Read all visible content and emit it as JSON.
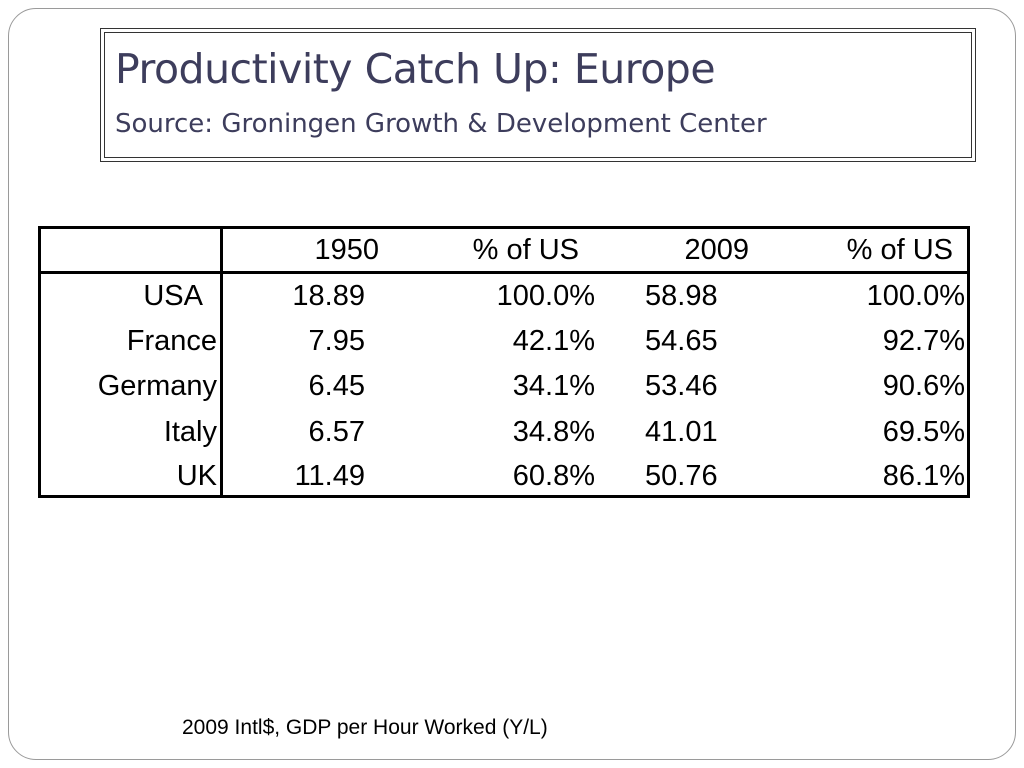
{
  "slide": {
    "title": "Productivity Catch Up: Europe",
    "subtitle": "Source: Groningen Growth & Development Center",
    "footnote": "2009 Intl$, GDP per Hour Worked (Y/L)"
  },
  "table": {
    "columns": [
      "1950",
      "% of US",
      "2009",
      "% of US"
    ],
    "rows": [
      {
        "country": "USA",
        "v1950": "18.89",
        "pct1950": "100.0%",
        "v2009": "58.98",
        "pct2009": "100.0%"
      },
      {
        "country": "France",
        "v1950": "7.95",
        "pct1950": "42.1%",
        "v2009": "54.65",
        "pct2009": "92.7%"
      },
      {
        "country": "Germany",
        "v1950": "6.45",
        "pct1950": "34.1%",
        "v2009": "53.46",
        "pct2009": "90.6%"
      },
      {
        "country": "Italy",
        "v1950": "6.57",
        "pct1950": "34.8%",
        "v2009": "41.01",
        "pct2009": "69.5%"
      },
      {
        "country": "UK",
        "v1950": "11.49",
        "pct1950": "60.8%",
        "v2009": "50.76",
        "pct2009": "86.1%"
      }
    ]
  },
  "colors": {
    "title": "#3d3d5c",
    "border": "#000000",
    "frame": "#9a9a9a"
  }
}
